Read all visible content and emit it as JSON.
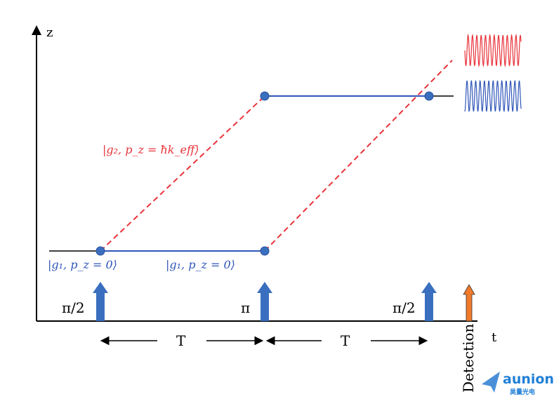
{
  "axes": {
    "z_label": "z",
    "t_label": "t"
  },
  "pulses": [
    {
      "label": "π/2",
      "color": "#3a6fbf"
    },
    {
      "label": "π",
      "color": "#3a6fbf"
    },
    {
      "label": "π/2",
      "color": "#3a6fbf"
    }
  ],
  "detection": {
    "label": "Detection",
    "color": "#f07a2a"
  },
  "state_labels": {
    "ground_left": "|g₁, p_z = 0⟩",
    "ground_mid": "|g₁, p_z = 0⟩",
    "excited": "|g₂, p_z = ħk_eff⟩"
  },
  "intervals": {
    "first": "T",
    "second": "T"
  },
  "colors": {
    "ground_path": "#2f56b8",
    "excited_path": "#e8333a",
    "node": "#3a6fbf"
  },
  "logo": {
    "name": "aunion",
    "subtitle": "昊量光电"
  }
}
